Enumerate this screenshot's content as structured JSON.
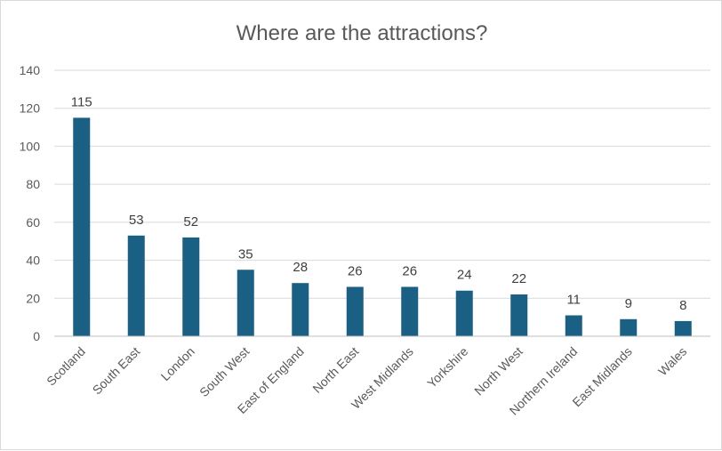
{
  "chart_data": {
    "type": "bar",
    "title": "Where are the attractions?",
    "xlabel": "",
    "ylabel": "",
    "categories": [
      "Scotland",
      "South East",
      "London",
      "South West",
      "East of England",
      "North East",
      "West Midlands",
      "Yorkshire",
      "North West",
      "Northern Ireland",
      "East Midlands",
      "Wales"
    ],
    "values": [
      115,
      53,
      52,
      35,
      28,
      26,
      26,
      24,
      22,
      11,
      9,
      8
    ],
    "ylim": [
      0,
      140
    ],
    "yticks": [
      0,
      20,
      40,
      60,
      80,
      100,
      120,
      140
    ],
    "grid": true,
    "legend": "none",
    "bar_color": "#1a5f84"
  }
}
